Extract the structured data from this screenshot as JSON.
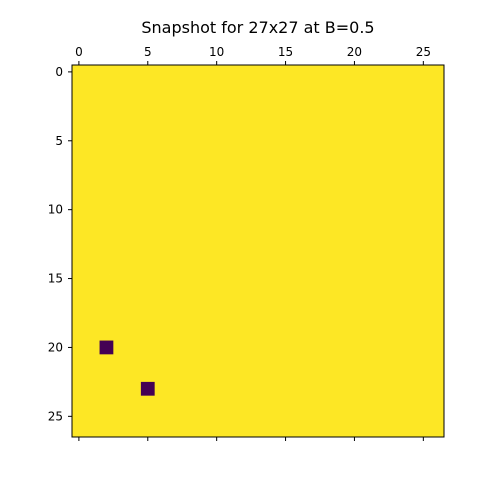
{
  "chart_data": {
    "type": "heatmap",
    "title": "Snapshot for 27x27 at B=0.5",
    "xlabel": "",
    "ylabel": "",
    "rows": 27,
    "cols": 27,
    "x_ticks": [
      0,
      5,
      10,
      15,
      20,
      25
    ],
    "y_ticks": [
      0,
      5,
      10,
      15,
      20,
      25
    ],
    "x_axis_position": "top",
    "y_origin": "top",
    "grid": false,
    "colormap": "viridis",
    "background_value": 1,
    "background_color": "#fde725",
    "marked_color": "#440154",
    "marked_cells": [
      {
        "row": 20,
        "col": 2,
        "value": 0
      },
      {
        "row": 23,
        "col": 5,
        "value": 0
      }
    ]
  }
}
